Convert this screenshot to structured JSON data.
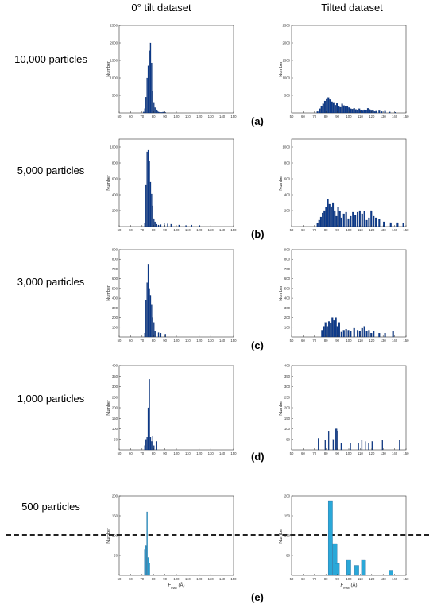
{
  "column_headers": [
    "0° tilt dataset",
    "Tilted dataset"
  ],
  "row_labels": [
    "10,000 particles",
    "5,000 particles",
    "3,000 particles",
    "1,000 particles",
    "500 particles"
  ],
  "panel_letters": [
    "(a)",
    "(b)",
    "(c)",
    "(d)",
    "(e)"
  ],
  "colors": {
    "dark_bar": "#0d3a8a",
    "light_bar": "#2aa8d8",
    "axis": "#333333",
    "divider": "#222222"
  },
  "chart_data": [
    {
      "type": "bar",
      "panel": "(a)",
      "column": "0° tilt dataset",
      "rows": "10,000 particles",
      "ylabel": "Number",
      "xlabel": "",
      "xlim": [
        50,
        150
      ],
      "ylim": [
        0,
        2500
      ],
      "xticks": [
        50,
        60,
        70,
        80,
        90,
        100,
        110,
        120,
        130,
        140,
        150
      ],
      "yticks": [
        500,
        1000,
        1500,
        2000,
        2500
      ],
      "bin_width": 1,
      "color": "#0d3a8a",
      "bins": [
        [
          71,
          30
        ],
        [
          72,
          120
        ],
        [
          73,
          450
        ],
        [
          74,
          1000
        ],
        [
          75,
          1350
        ],
        [
          76,
          1780
        ],
        [
          77,
          2000
        ],
        [
          78,
          1430
        ],
        [
          79,
          620
        ],
        [
          80,
          300
        ],
        [
          81,
          150
        ],
        [
          82,
          90
        ],
        [
          83,
          50
        ],
        [
          84,
          30
        ],
        [
          85,
          20
        ],
        [
          86,
          15
        ],
        [
          87,
          15
        ],
        [
          88,
          25
        ],
        [
          89,
          30
        ],
        [
          90,
          15
        ]
      ]
    },
    {
      "type": "bar",
      "panel": "(a)",
      "column": "Tilted dataset",
      "rows": "10,000 particles",
      "ylabel": "Number",
      "xlabel": "",
      "xlim": [
        50,
        150
      ],
      "ylim": [
        0,
        2500
      ],
      "xticks": [
        50,
        60,
        70,
        80,
        90,
        100,
        110,
        120,
        130,
        140,
        150
      ],
      "yticks": [
        500,
        1000,
        1500,
        2000,
        2500
      ],
      "bin_width": 1.5,
      "color": "#0d3a8a",
      "bins": [
        [
          72,
          40
        ],
        [
          74,
          120
        ],
        [
          75.5,
          200
        ],
        [
          77,
          260
        ],
        [
          78.5,
          340
        ],
        [
          80,
          410
        ],
        [
          81.5,
          440
        ],
        [
          83,
          380
        ],
        [
          84.5,
          320
        ],
        [
          86,
          300
        ],
        [
          87.5,
          220
        ],
        [
          89,
          270
        ],
        [
          90.5,
          200
        ],
        [
          92,
          160
        ],
        [
          93.5,
          260
        ],
        [
          95,
          210
        ],
        [
          96.5,
          180
        ],
        [
          98,
          200
        ],
        [
          99.5,
          150
        ],
        [
          101,
          120
        ],
        [
          102.5,
          110
        ],
        [
          104,
          130
        ],
        [
          105.5,
          100
        ],
        [
          107,
          90
        ],
        [
          108.5,
          120
        ],
        [
          110,
          80
        ],
        [
          111.5,
          60
        ],
        [
          113,
          90
        ],
        [
          114.5,
          70
        ],
        [
          116,
          130
        ],
        [
          117.5,
          100
        ],
        [
          119,
          60
        ],
        [
          120.5,
          80
        ],
        [
          122,
          40
        ],
        [
          123.5,
          50
        ],
        [
          126,
          60
        ],
        [
          128,
          40
        ],
        [
          131,
          50
        ],
        [
          135,
          30
        ],
        [
          140,
          20
        ]
      ]
    },
    {
      "type": "bar",
      "panel": "(b)",
      "column": "0° tilt dataset",
      "rows": "5,000 particles",
      "ylabel": "Number",
      "xlabel": "",
      "xlim": [
        50,
        150
      ],
      "ylim": [
        0,
        1100
      ],
      "xticks": [
        50,
        60,
        70,
        80,
        90,
        100,
        110,
        120,
        130,
        140,
        150
      ],
      "yticks": [
        200,
        400,
        600,
        800,
        1000
      ],
      "bin_width": 1,
      "color": "#0d3a8a",
      "bins": [
        [
          72,
          40
        ],
        [
          73,
          520
        ],
        [
          74,
          940
        ],
        [
          75,
          960
        ],
        [
          76,
          820
        ],
        [
          77,
          560
        ],
        [
          78,
          410
        ],
        [
          79,
          260
        ],
        [
          80,
          100
        ],
        [
          81,
          60
        ],
        [
          82,
          30
        ],
        [
          84,
          20
        ],
        [
          86,
          25
        ],
        [
          89,
          40
        ],
        [
          92,
          35
        ],
        [
          95,
          30
        ],
        [
          102,
          20
        ],
        [
          108,
          15
        ],
        [
          113,
          20
        ],
        [
          120,
          15
        ]
      ]
    },
    {
      "type": "bar",
      "panel": "(b)",
      "column": "Tilted dataset",
      "rows": "5,000 particles",
      "ylabel": "Number",
      "xlabel": "",
      "xlim": [
        50,
        150
      ],
      "ylim": [
        0,
        1100
      ],
      "xticks": [
        50,
        60,
        70,
        80,
        90,
        100,
        110,
        120,
        130,
        140,
        150
      ],
      "yticks": [
        200,
        400,
        600,
        800,
        1000
      ],
      "bin_width": 1.5,
      "color": "#0d3a8a",
      "bins": [
        [
          72,
          40
        ],
        [
          73.5,
          80
        ],
        [
          75,
          120
        ],
        [
          76.5,
          170
        ],
        [
          78,
          200
        ],
        [
          79.5,
          240
        ],
        [
          81,
          340
        ],
        [
          82.5,
          280
        ],
        [
          84,
          250
        ],
        [
          85.5,
          300
        ],
        [
          87,
          200
        ],
        [
          88.5,
          130
        ],
        [
          90,
          240
        ],
        [
          91.5,
          190
        ],
        [
          93,
          110
        ],
        [
          95,
          160
        ],
        [
          97,
          180
        ],
        [
          99,
          100
        ],
        [
          101,
          130
        ],
        [
          103,
          180
        ],
        [
          105,
          140
        ],
        [
          107,
          180
        ],
        [
          109,
          200
        ],
        [
          111,
          160
        ],
        [
          113,
          190
        ],
        [
          115,
          80
        ],
        [
          117,
          110
        ],
        [
          119,
          200
        ],
        [
          121,
          130
        ],
        [
          123,
          110
        ],
        [
          126,
          90
        ],
        [
          130,
          60
        ],
        [
          136,
          50
        ],
        [
          142,
          50
        ],
        [
          147,
          40
        ]
      ]
    },
    {
      "type": "bar",
      "panel": "(c)",
      "column": "0° tilt dataset",
      "rows": "3,000 particles",
      "ylabel": "Number",
      "xlabel": "",
      "xlim": [
        50,
        150
      ],
      "ylim": [
        0,
        900
      ],
      "xticks": [
        50,
        60,
        70,
        80,
        90,
        100,
        110,
        120,
        130,
        140,
        150
      ],
      "yticks": [
        100,
        200,
        300,
        400,
        500,
        600,
        700,
        800,
        900
      ],
      "bin_width": 1,
      "color": "#0d3a8a",
      "bins": [
        [
          72,
          40
        ],
        [
          73,
          380
        ],
        [
          74,
          560
        ],
        [
          75,
          750
        ],
        [
          76,
          500
        ],
        [
          77,
          430
        ],
        [
          78,
          330
        ],
        [
          79,
          200
        ],
        [
          80,
          150
        ],
        [
          81,
          60
        ],
        [
          84,
          45
        ],
        [
          86,
          40
        ],
        [
          90,
          30
        ]
      ]
    },
    {
      "type": "bar",
      "panel": "(c)",
      "column": "Tilted dataset",
      "rows": "3,000 particles",
      "ylabel": "Number",
      "xlabel": "",
      "xlim": [
        50,
        150
      ],
      "ylim": [
        0,
        900
      ],
      "xticks": [
        50,
        60,
        70,
        80,
        90,
        100,
        110,
        120,
        130,
        140,
        150
      ],
      "yticks": [
        100,
        200,
        300,
        400,
        500,
        600,
        700,
        800,
        900
      ],
      "bin_width": 1.5,
      "color": "#0d3a8a",
      "bins": [
        [
          76,
          70
        ],
        [
          77.5,
          110
        ],
        [
          79,
          150
        ],
        [
          80.5,
          110
        ],
        [
          82,
          160
        ],
        [
          83.5,
          140
        ],
        [
          85,
          200
        ],
        [
          86.5,
          170
        ],
        [
          88,
          200
        ],
        [
          89.5,
          110
        ],
        [
          91,
          150
        ],
        [
          93,
          50
        ],
        [
          95,
          70
        ],
        [
          97,
          80
        ],
        [
          99,
          70
        ],
        [
          101,
          60
        ],
        [
          104,
          90
        ],
        [
          107,
          70
        ],
        [
          109,
          60
        ],
        [
          111,
          90
        ],
        [
          113,
          110
        ],
        [
          115,
          60
        ],
        [
          117,
          70
        ],
        [
          119,
          40
        ],
        [
          121,
          60
        ],
        [
          126,
          40
        ],
        [
          131,
          40
        ],
        [
          138,
          60
        ]
      ]
    },
    {
      "type": "bar",
      "panel": "(d)",
      "column": "0° tilt dataset",
      "rows": "1,000 particles",
      "ylabel": "Number",
      "xlabel": "",
      "xlim": [
        50,
        150
      ],
      "ylim": [
        0,
        400
      ],
      "xticks": [
        50,
        60,
        70,
        80,
        90,
        100,
        110,
        120,
        130,
        140,
        150
      ],
      "yticks": [
        50,
        100,
        150,
        200,
        250,
        300,
        350,
        400
      ],
      "bin_width": 1,
      "color": "#0d3a8a",
      "bins": [
        [
          72,
          20
        ],
        [
          73,
          50
        ],
        [
          74,
          60
        ],
        [
          75,
          200
        ],
        [
          76,
          335
        ],
        [
          77,
          60
        ],
        [
          78,
          40
        ],
        [
          79,
          65
        ],
        [
          80,
          20
        ],
        [
          82,
          40
        ]
      ]
    },
    {
      "type": "bar",
      "panel": "(d)",
      "column": "Tilted dataset",
      "rows": "1,000 particles",
      "ylabel": "Number",
      "xlabel": "",
      "xlim": [
        50,
        150
      ],
      "ylim": [
        0,
        400
      ],
      "xticks": [
        50,
        60,
        70,
        80,
        90,
        100,
        110,
        120,
        130,
        140,
        150
      ],
      "yticks": [
        50,
        100,
        150,
        200,
        250,
        300,
        350,
        400
      ],
      "bin_width": 1,
      "color": "#0d3a8a",
      "bins": [
        [
          73,
          55
        ],
        [
          79,
          45
        ],
        [
          82,
          90
        ],
        [
          86,
          50
        ],
        [
          88,
          100
        ],
        [
          89,
          100
        ],
        [
          90,
          90
        ],
        [
          93,
          30
        ],
        [
          101,
          30
        ],
        [
          108,
          30
        ],
        [
          111,
          45
        ],
        [
          114,
          40
        ],
        [
          117,
          30
        ],
        [
          120,
          40
        ],
        [
          129,
          45
        ],
        [
          144,
          45
        ]
      ]
    },
    {
      "type": "bar",
      "panel": "(e)",
      "column": "0° tilt dataset",
      "rows": "500 particles",
      "ylabel": "Number",
      "xlabel": "F_max (Å)",
      "xlim": [
        50,
        150
      ],
      "ylim": [
        0,
        200
      ],
      "xticks": [
        50,
        60,
        70,
        80,
        90,
        100,
        110,
        120,
        130,
        140,
        150
      ],
      "yticks": [
        50,
        100,
        150,
        200
      ],
      "bin_width": 1,
      "color": "#2aa8d8",
      "bins": [
        [
          72,
          65
        ],
        [
          73,
          75
        ],
        [
          74,
          160
        ],
        [
          75,
          45
        ],
        [
          76,
          30
        ]
      ]
    },
    {
      "type": "bar",
      "panel": "(e)",
      "column": "Tilted dataset",
      "rows": "500 particles",
      "ylabel": "Number",
      "xlabel": "F_max (Å)",
      "xlim": [
        50,
        150
      ],
      "ylim": [
        0,
        200
      ],
      "xticks": [
        50,
        60,
        70,
        80,
        90,
        100,
        110,
        120,
        130,
        140,
        150
      ],
      "yticks": [
        50,
        100,
        150,
        200
      ],
      "bin_width": 4,
      "color": "#2aa8d8",
      "bins": [
        [
          82,
          188
        ],
        [
          86,
          80
        ],
        [
          88,
          30
        ],
        [
          98,
          40
        ],
        [
          105,
          25
        ],
        [
          111,
          40
        ],
        [
          135,
          13
        ]
      ]
    }
  ]
}
